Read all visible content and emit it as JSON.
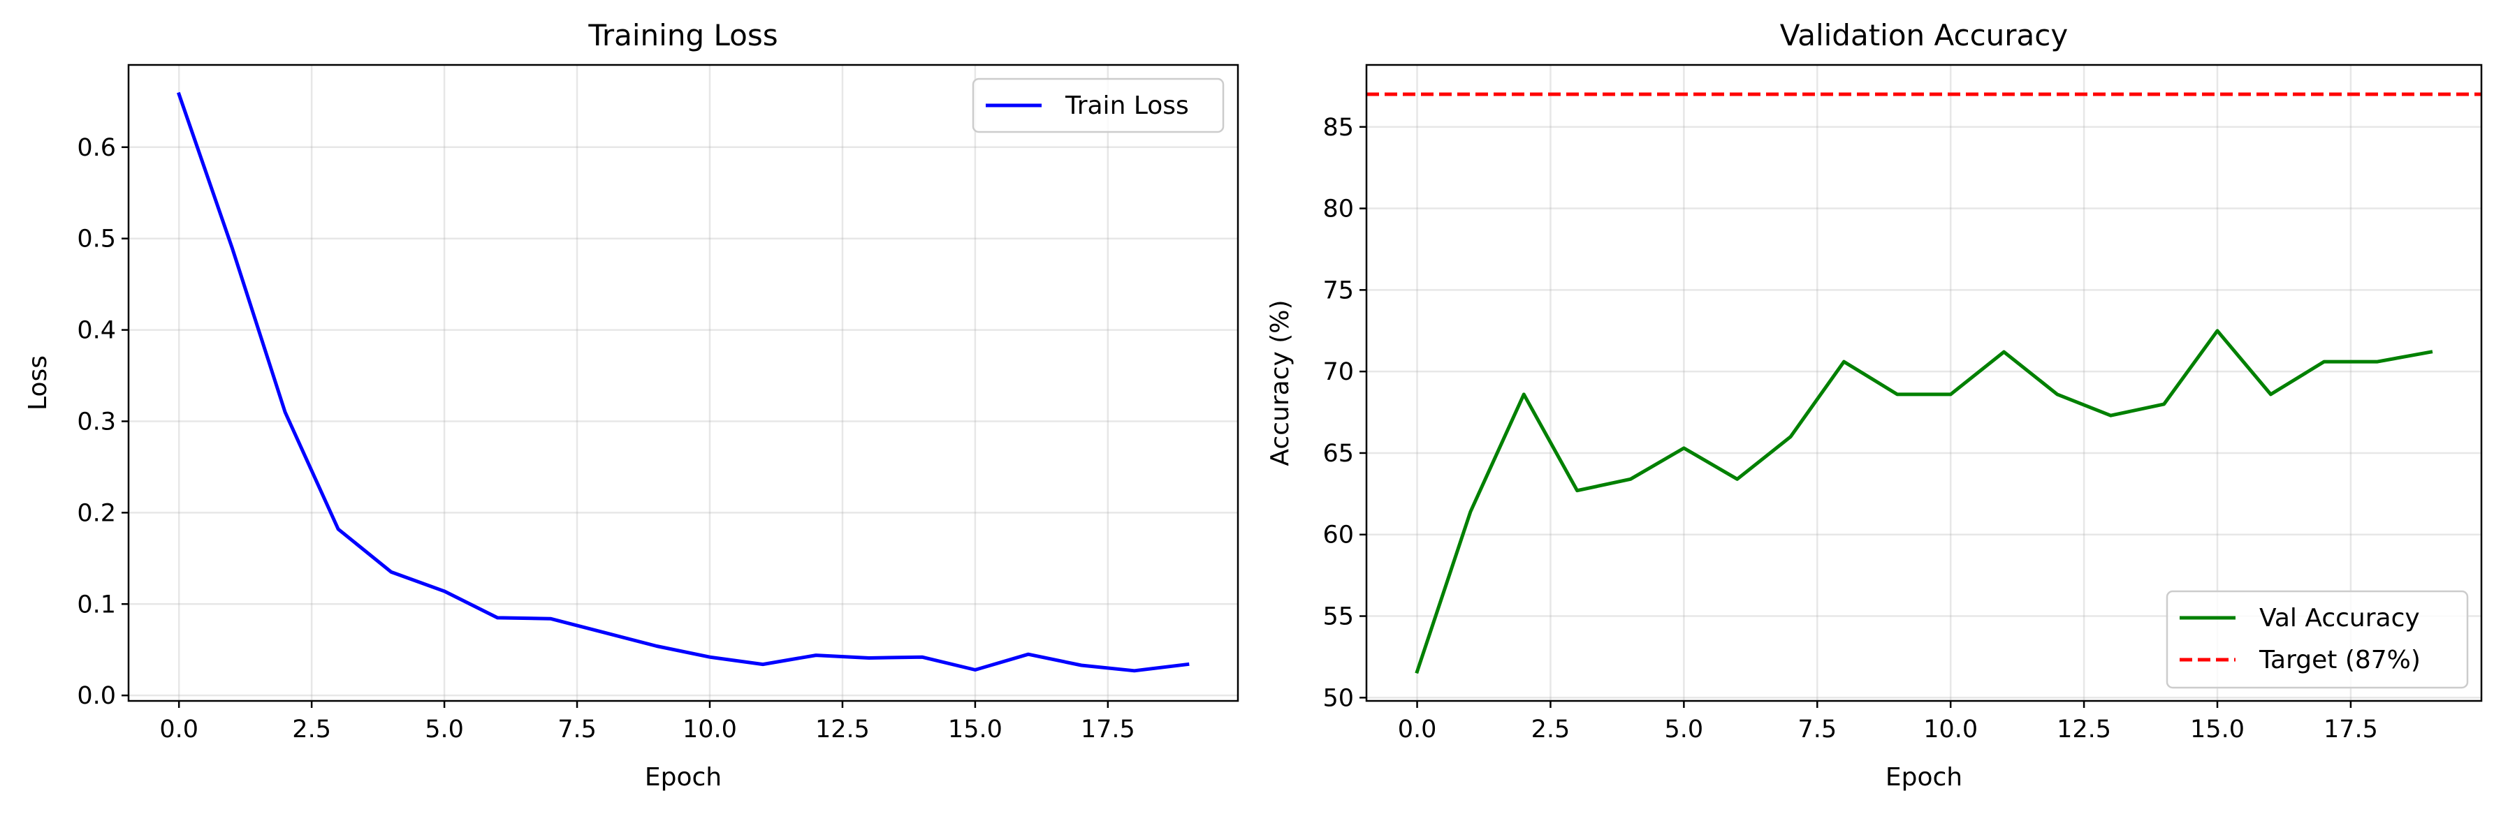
{
  "colors": {
    "train": "#0000ff",
    "val": "#008000",
    "target": "#ff0000"
  },
  "chart_data": [
    {
      "type": "line",
      "title": "Training Loss",
      "xlabel": "Epoch",
      "ylabel": "Loss",
      "xlim": [
        -0.95,
        19.95
      ],
      "ylim": [
        -0.006,
        0.69
      ],
      "xticks": [
        0,
        2.5,
        5,
        7.5,
        10,
        12.5,
        15,
        17.5
      ],
      "xtick_labels": [
        "0.0",
        "2.5",
        "5.0",
        "7.5",
        "10.0",
        "12.5",
        "15.0",
        "17.5"
      ],
      "yticks": [
        0,
        0.1,
        0.2,
        0.3,
        0.4,
        0.5,
        0.6
      ],
      "ytick_labels": [
        "0.0",
        "0.1",
        "0.2",
        "0.3",
        "0.4",
        "0.5",
        "0.6"
      ],
      "grid": true,
      "legend_position": "top-right",
      "x": [
        0,
        1,
        2,
        3,
        4,
        5,
        6,
        7,
        8,
        9,
        10,
        11,
        12,
        13,
        14,
        15,
        16,
        17,
        18,
        19
      ],
      "series": [
        {
          "name": "Train Loss",
          "style": "solid",
          "values": [
            0.658,
            0.49,
            0.31,
            0.182,
            0.135,
            0.114,
            0.085,
            0.084,
            0.069,
            0.054,
            0.042,
            0.034,
            0.044,
            0.041,
            0.042,
            0.028,
            0.045,
            0.033,
            0.027,
            0.034
          ]
        }
      ]
    },
    {
      "type": "line",
      "title": "Validation Accuracy",
      "xlabel": "Epoch",
      "ylabel": "Accuracy (%)",
      "xlim": [
        -0.95,
        19.95
      ],
      "ylim": [
        49.8,
        88.8
      ],
      "xticks": [
        0,
        2.5,
        5,
        7.5,
        10,
        12.5,
        15,
        17.5
      ],
      "xtick_labels": [
        "0.0",
        "2.5",
        "5.0",
        "7.5",
        "10.0",
        "12.5",
        "15.0",
        "17.5"
      ],
      "yticks": [
        50,
        55,
        60,
        65,
        70,
        75,
        80,
        85
      ],
      "ytick_labels": [
        "50",
        "55",
        "60",
        "65",
        "70",
        "75",
        "80",
        "85"
      ],
      "grid": true,
      "legend_position": "bottom-right",
      "x": [
        0,
        1,
        2,
        3,
        4,
        5,
        6,
        7,
        8,
        9,
        10,
        11,
        12,
        13,
        14,
        15,
        16,
        17,
        18,
        19
      ],
      "series": [
        {
          "name": "Val Accuracy",
          "style": "solid",
          "values": [
            51.6,
            61.4,
            68.6,
            62.7,
            63.4,
            65.3,
            63.4,
            66.0,
            70.6,
            68.6,
            68.6,
            71.2,
            68.6,
            67.3,
            68.0,
            72.5,
            68.6,
            70.6,
            70.6,
            71.2
          ]
        }
      ],
      "hlines": [
        {
          "name": "Target (87%)",
          "style": "dashed",
          "value": 87
        }
      ]
    }
  ]
}
